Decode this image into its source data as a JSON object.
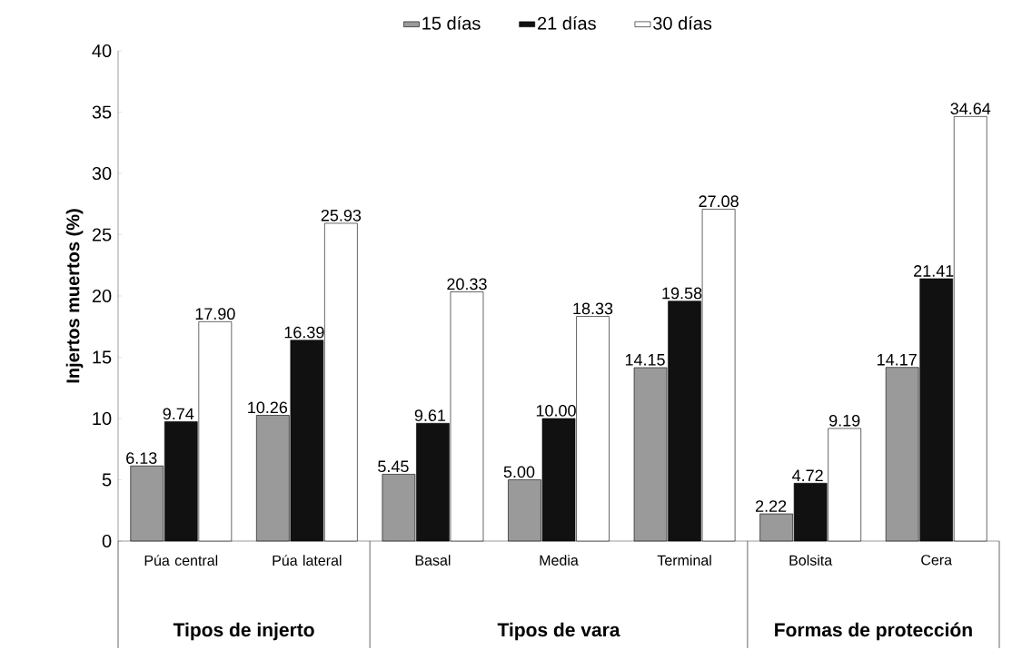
{
  "chart_data": {
    "type": "bar",
    "ylabel": "Injertos muertos (%)",
    "categories": [
      "Púa central",
      "Púa lateral",
      "Basal",
      "Media",
      "Terminal",
      "Bolsita",
      "Cera"
    ],
    "series": [
      {
        "name": "15 días",
        "color": "#9a9a9a",
        "values": [
          6.13,
          10.26,
          5.45,
          5.0,
          14.15,
          2.22,
          14.17
        ],
        "value_labels": [
          "6.13",
          "10.26",
          "5.45",
          "5.00",
          "14.15",
          "2.22",
          "14.17"
        ]
      },
      {
        "name": "21 días",
        "color": "#111111",
        "values": [
          9.74,
          16.39,
          9.61,
          10.0,
          19.58,
          4.72,
          21.41
        ],
        "value_labels": [
          "9.74",
          "16.39",
          "9.61",
          "10.00",
          "19.58",
          "4.72",
          "21.41"
        ]
      },
      {
        "name": "30 días",
        "color": "#ffffff",
        "values": [
          17.9,
          25.93,
          20.33,
          18.33,
          27.08,
          9.19,
          34.64
        ],
        "value_labels": [
          "17.90",
          "25.93",
          "20.33",
          "18.33",
          "27.08",
          "9.19",
          "34.64"
        ]
      }
    ],
    "ylim": [
      0,
      40
    ],
    "yticks": [
      0,
      5,
      10,
      15,
      20,
      25,
      30,
      35,
      40
    ],
    "grid": false,
    "legend": "top",
    "annotations": [
      "Tipos de injerto",
      "Tipos de vara",
      "Formas de protección"
    ]
  }
}
